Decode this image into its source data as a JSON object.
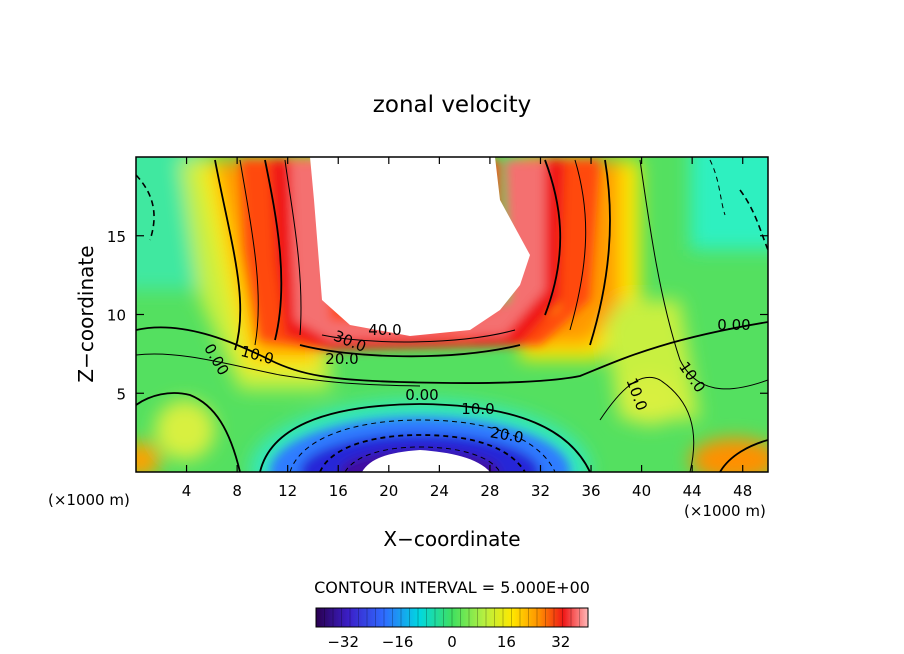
{
  "chart_data": {
    "type": "contour",
    "title": "zonal velocity",
    "xlabel": "X−coordinate",
    "ylabel": "Z−coordinate",
    "x_unit_left": "(×1000 m)",
    "x_unit_right": "(×1000 m)",
    "xlim": [
      0,
      50
    ],
    "ylim": [
      0,
      20
    ],
    "x_ticks": [
      4,
      8,
      12,
      16,
      20,
      24,
      28,
      32,
      36,
      40,
      44,
      48
    ],
    "x_tick_labels": [
      "4",
      "8",
      "12",
      "16",
      "20",
      "24",
      "28",
      "32",
      "36",
      "40",
      "44",
      "48"
    ],
    "y_ticks": [
      5,
      10,
      15
    ],
    "y_tick_labels": [
      "5",
      "10",
      "15"
    ],
    "contour_interval_text": "CONTOUR INTERVAL = 5.000E+00",
    "contour_interval": 5.0,
    "contour_labels": [
      "40.0",
      "30.0",
      "20.0",
      "10.0",
      "0.00",
      "0.00",
      "10.0",
      "20.0",
      "0.00",
      "10.0",
      "10.0"
    ],
    "features": [
      {
        "kind": "max",
        "x": 27,
        "y": 16,
        "value_gt": 40
      },
      {
        "kind": "min",
        "x": 22,
        "y": 1,
        "value_lt": -36
      }
    ],
    "colorbar": {
      "range": [
        -40,
        40
      ],
      "tick_values": [
        -32,
        -16,
        0,
        16,
        32
      ],
      "tick_labels": [
        "−32",
        "−16",
        "0",
        "16",
        "32"
      ]
    }
  }
}
